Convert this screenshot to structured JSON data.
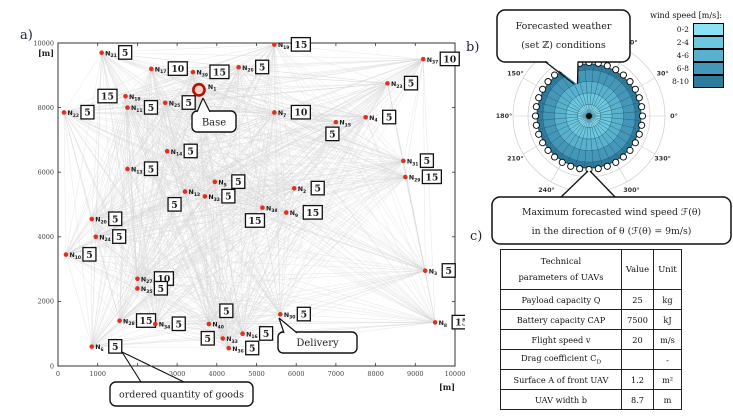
{
  "figure": {
    "panel_a_label": "a)",
    "panel_b_label": "b)",
    "panel_c_label": "c)"
  },
  "colors": {
    "node_red": "#e0301e",
    "base_ring": "#b51205",
    "base_fill": "#f6cfc4",
    "edge": "#d6d6d6",
    "box_border": "#111111",
    "grid": "#cccccc",
    "axis": "#333333"
  },
  "chart_data": [
    {
      "type": "scatter",
      "name": "uav-delivery-network",
      "xlabel": "[m]",
      "ylabel": "[m]",
      "xlim": [
        0,
        10000
      ],
      "ylim": [
        0,
        10000
      ],
      "x_ticks": [
        0,
        1000,
        2000,
        3000,
        4000,
        5000,
        6000,
        7000,
        8000,
        9000,
        10000
      ],
      "y_ticks": [
        0,
        2000,
        4000,
        6000,
        8000,
        10000
      ],
      "hidden_x_tick_labels": [
        2000
      ],
      "edges": "complete-graph",
      "annotations": {
        "base": "Base",
        "delivery": "Delivery",
        "ordered": "ordered quantity of goods"
      },
      "nodes": [
        {
          "id": "N_1",
          "x": 3550,
          "y": 8550,
          "base": true
        },
        {
          "id": "N_2",
          "x": 5950,
          "y": 5500,
          "q": 5,
          "lp": "r"
        },
        {
          "id": "N_3",
          "x": 9250,
          "y": 2950,
          "q": 5,
          "lp": "r"
        },
        {
          "id": "N_4",
          "x": 7750,
          "y": 7700,
          "q": 5,
          "lp": "r"
        },
        {
          "id": "N_5",
          "x": 3950,
          "y": 5700,
          "q": 5,
          "lp": "r"
        },
        {
          "id": "N_6",
          "x": 850,
          "y": 600,
          "q": 5,
          "lp": "r"
        },
        {
          "id": "N_7",
          "x": 5450,
          "y": 7850,
          "q": 10,
          "lp": "r"
        },
        {
          "id": "N_8",
          "x": 9500,
          "y": 1350,
          "q": 15,
          "lp": "r"
        },
        {
          "id": "N_9",
          "x": 5750,
          "y": 4750,
          "q": 15,
          "lp": "r"
        },
        {
          "id": "N_10",
          "x": 200,
          "y": 3450,
          "q": 5,
          "lp": "r"
        },
        {
          "id": "N_11",
          "x": 1750,
          "y": 8000,
          "q": 5,
          "lp": "r"
        },
        {
          "id": "N_12",
          "x": 3200,
          "y": 5400,
          "q": 5,
          "lp": "bl"
        },
        {
          "id": "N_13",
          "x": 1750,
          "y": 6100,
          "q": 5,
          "lp": "r"
        },
        {
          "id": "N_14",
          "x": 2750,
          "y": 6650,
          "q": 5,
          "lp": "r"
        },
        {
          "id": "N_15",
          "x": 7000,
          "y": 7550,
          "q": 5,
          "lp": "b"
        },
        {
          "id": "N_16",
          "x": 4650,
          "y": 1000,
          "q": 5,
          "lp": "r"
        },
        {
          "id": "N_17",
          "x": 2350,
          "y": 9200,
          "q": 10,
          "lp": "r"
        },
        {
          "id": "N_18",
          "x": 1700,
          "y": 8350,
          "q": 15,
          "lp": "l"
        },
        {
          "id": "N_19",
          "x": 5450,
          "y": 9950,
          "q": 15,
          "lp": "r"
        },
        {
          "id": "N_20",
          "x": 850,
          "y": 4550,
          "q": 5,
          "lp": "r"
        },
        {
          "id": "N_21",
          "x": 1100,
          "y": 9700,
          "q": 5,
          "lp": "r"
        },
        {
          "id": "N_22",
          "x": 150,
          "y": 7850,
          "q": 5,
          "lp": "r"
        },
        {
          "id": "N_23",
          "x": 8300,
          "y": 8750,
          "q": 5,
          "lp": "r"
        },
        {
          "id": "N_24",
          "x": 950,
          "y": 4000,
          "q": 5,
          "lp": "r"
        },
        {
          "id": "N_25",
          "x": 2700,
          "y": 8150,
          "q": 5,
          "lp": "r"
        },
        {
          "id": "N_26",
          "x": 4550,
          "y": 9250,
          "q": 5,
          "lp": "r"
        },
        {
          "id": "N_27",
          "x": 2000,
          "y": 2700,
          "q": 10,
          "lp": "r"
        },
        {
          "id": "N_28",
          "x": 1550,
          "y": 1400,
          "q": 15,
          "lp": "r"
        },
        {
          "id": "N_29",
          "x": 8750,
          "y": 5850,
          "q": 15,
          "lp": "r"
        },
        {
          "id": "N_30",
          "x": 5600,
          "y": 1600,
          "q": 5,
          "lp": "r"
        },
        {
          "id": "N_31",
          "x": 8700,
          "y": 6350,
          "q": 5,
          "lp": "r"
        },
        {
          "id": "N_32",
          "x": 3700,
          "y": 5250,
          "q": 5,
          "lp": "r"
        },
        {
          "id": "N_33",
          "x": 4150,
          "y": 850,
          "q": 5,
          "lp": "l"
        },
        {
          "id": "N_34",
          "x": 2450,
          "y": 1300,
          "q": 5,
          "lp": "r"
        },
        {
          "id": "N_35",
          "x": 2000,
          "y": 2400,
          "q": 5,
          "lp": "r"
        },
        {
          "id": "N_36",
          "x": 4300,
          "y": 550,
          "q": 5,
          "lp": "r"
        },
        {
          "id": "N_37",
          "x": 9200,
          "y": 9500,
          "q": 10,
          "lp": "r"
        },
        {
          "id": "N_38",
          "x": 5150,
          "y": 4900,
          "q": 15,
          "lp": "bl"
        },
        {
          "id": "N_39",
          "x": 3400,
          "y": 9100,
          "q": 15,
          "lp": "r"
        },
        {
          "id": "N_40",
          "x": 3800,
          "y": 1300,
          "q": 5,
          "lp": "a"
        }
      ]
    },
    {
      "type": "polar-area",
      "name": "wind-rose",
      "legend_title": "wind speed [m/s]:",
      "bins": [
        {
          "range": "0-2",
          "color": "#8ce1f4"
        },
        {
          "range": "2-4",
          "color": "#6cc8df"
        },
        {
          "range": "4-6",
          "color": "#58b2cd"
        },
        {
          "range": "6-8",
          "color": "#4497b8"
        },
        {
          "range": "8-10",
          "color": "#2f7b9d"
        }
      ],
      "direction_step_deg": 10,
      "max_speed_mps": 9,
      "speed_axis_max": 9,
      "angle_label_degs": [
        0,
        30,
        60,
        150,
        180,
        210,
        240,
        300,
        330
      ],
      "angle_label_suffix": "°",
      "callout_top": [
        "Forecasted weather",
        "(set ℤ) conditions"
      ],
      "callout_bottom": [
        "Maximum forecasted wind speed ℱ(θ)",
        "in the direction of θ (ℱ(θ) = 9m/s)"
      ]
    }
  ],
  "table_c": {
    "header_line1": "Technical",
    "header_line2": "parameters of UAVs",
    "header_value": "Value",
    "header_unit": "Unit",
    "rows": [
      [
        "Payload capacity Q",
        "25",
        "kg"
      ],
      [
        "Battery capacity CAP",
        "7500",
        "kJ"
      ],
      [
        "Flight speed v",
        "20",
        "m/s"
      ],
      [
        "Drag coefficient C_D",
        "",
        "-"
      ],
      [
        "Surface A of front UAV",
        "1.2",
        "m²"
      ],
      [
        "UAV width b",
        "8.7",
        "m"
      ]
    ]
  }
}
